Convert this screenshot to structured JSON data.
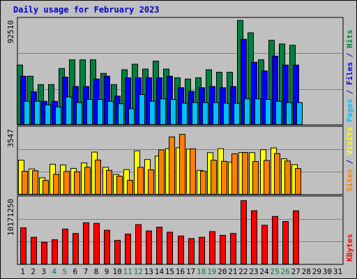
{
  "chart_data": {
    "type": "bar",
    "title": "Daily usage for February 2023",
    "days": [
      "1",
      "2",
      "3",
      "4",
      "5",
      "6",
      "7",
      "8",
      "9",
      "10",
      "11",
      "12",
      "13",
      "14",
      "15",
      "16",
      "17",
      "18",
      "19",
      "20",
      "21",
      "22",
      "23",
      "24",
      "25",
      "26",
      "27",
      "28",
      "29",
      "30",
      "31"
    ],
    "weekend_days": [
      "4",
      "5",
      "11",
      "12",
      "18",
      "19",
      "25",
      "26"
    ],
    "panels": [
      {
        "name": "hits-files-pages",
        "ymax": 92510,
        "ymax_label": "92510",
        "ylabel": [
          {
            "text": "Pages",
            "color": "#00c0ff"
          },
          {
            "text": " / ",
            "color": "#0000cc"
          },
          {
            "text": "Files",
            "color": "#0000ff"
          },
          {
            "text": " / ",
            "color": "#0000cc"
          },
          {
            "text": "Hits",
            "color": "#008040"
          }
        ],
        "series": [
          {
            "name": "Hits",
            "color": "#008040",
            "values": [
              53600,
              43600,
              36100,
              36100,
              50500,
              58300,
              58300,
              58300,
              46100,
              36100,
              49400,
              54400,
              50000,
              57200,
              50000,
              42200,
              41100,
              42200,
              49400,
              47200,
              47200,
              93600,
              82500,
              58300,
              75800,
              72500,
              71400,
              null,
              null,
              null,
              null
            ]
          },
          {
            "name": "Files",
            "color": "#0000ff",
            "values": [
              43600,
              29700,
              21100,
              21100,
              42800,
              34400,
              34400,
              41100,
              43600,
              25800,
              42200,
              42200,
              42200,
              42200,
              43600,
              33300,
              30000,
              33300,
              34400,
              33300,
              34400,
              76700,
              56100,
              48300,
              61600,
              53600,
              53600,
              null,
              null,
              null,
              null
            ]
          },
          {
            "name": "Pages",
            "color": "#00c0ff",
            "values": [
              21100,
              21100,
              17800,
              16100,
              25000,
              20000,
              22800,
              22800,
              21100,
              18900,
              14400,
              27200,
              21100,
              23300,
              22800,
              19400,
              20000,
              20000,
              20000,
              19400,
              19400,
              23300,
              23300,
              22800,
              21100,
              20000,
              20000,
              null,
              null,
              null,
              null
            ]
          }
        ]
      },
      {
        "name": "visits-sites",
        "ymax": 3547,
        "ymax_label": "3547",
        "ylabel": [
          {
            "text": "Sites",
            "color": "#ff8000"
          },
          {
            "text": " / ",
            "color": "#0000cc"
          },
          {
            "text": "Visits",
            "color": "#ffff00"
          }
        ],
        "series": [
          {
            "name": "Visits",
            "color": "#ffff00",
            "values": [
              1900,
              1420,
              930,
              1680,
              1640,
              1450,
              1750,
              2350,
              1510,
              1110,
              1380,
              2420,
              1940,
              2130,
              2540,
              2590,
              2520,
              1340,
              2320,
              2540,
              1800,
              2330,
              2320,
              2480,
              2580,
              1980,
              1660,
              null,
              null,
              null,
              null
            ]
          },
          {
            "name": "Sites",
            "color": "#ff8000",
            "values": [
              1290,
              1320,
              780,
              1120,
              1280,
              1260,
              1510,
              1910,
              1340,
              1020,
              790,
              1510,
              1370,
              2470,
              3190,
              3330,
              2530,
              1300,
              1900,
              1840,
              2260,
              2330,
              1830,
              1890,
              2270,
              1860,
              1440,
              null,
              null,
              null,
              null
            ]
          }
        ]
      },
      {
        "name": "kbytes",
        "ymax": 10171250,
        "ymax_label": "10171250",
        "ylabel": [
          {
            "text": "KBytes",
            "color": "#ff0000"
          }
        ],
        "series": [
          {
            "name": "KBytes",
            "color": "#ff0000",
            "values": [
              5800000,
              4300000,
              3500000,
              3900000,
              5600000,
              4900000,
              6600000,
              6500000,
              5400000,
              3800000,
              4800000,
              6300000,
              5300000,
              5900000,
              5100000,
              4500000,
              4100000,
              4300000,
              5200000,
              4600000,
              4900000,
              10100000,
              8500000,
              6200000,
              7600000,
              6800000,
              8500000,
              null,
              null,
              null,
              null
            ]
          }
        ]
      }
    ]
  }
}
